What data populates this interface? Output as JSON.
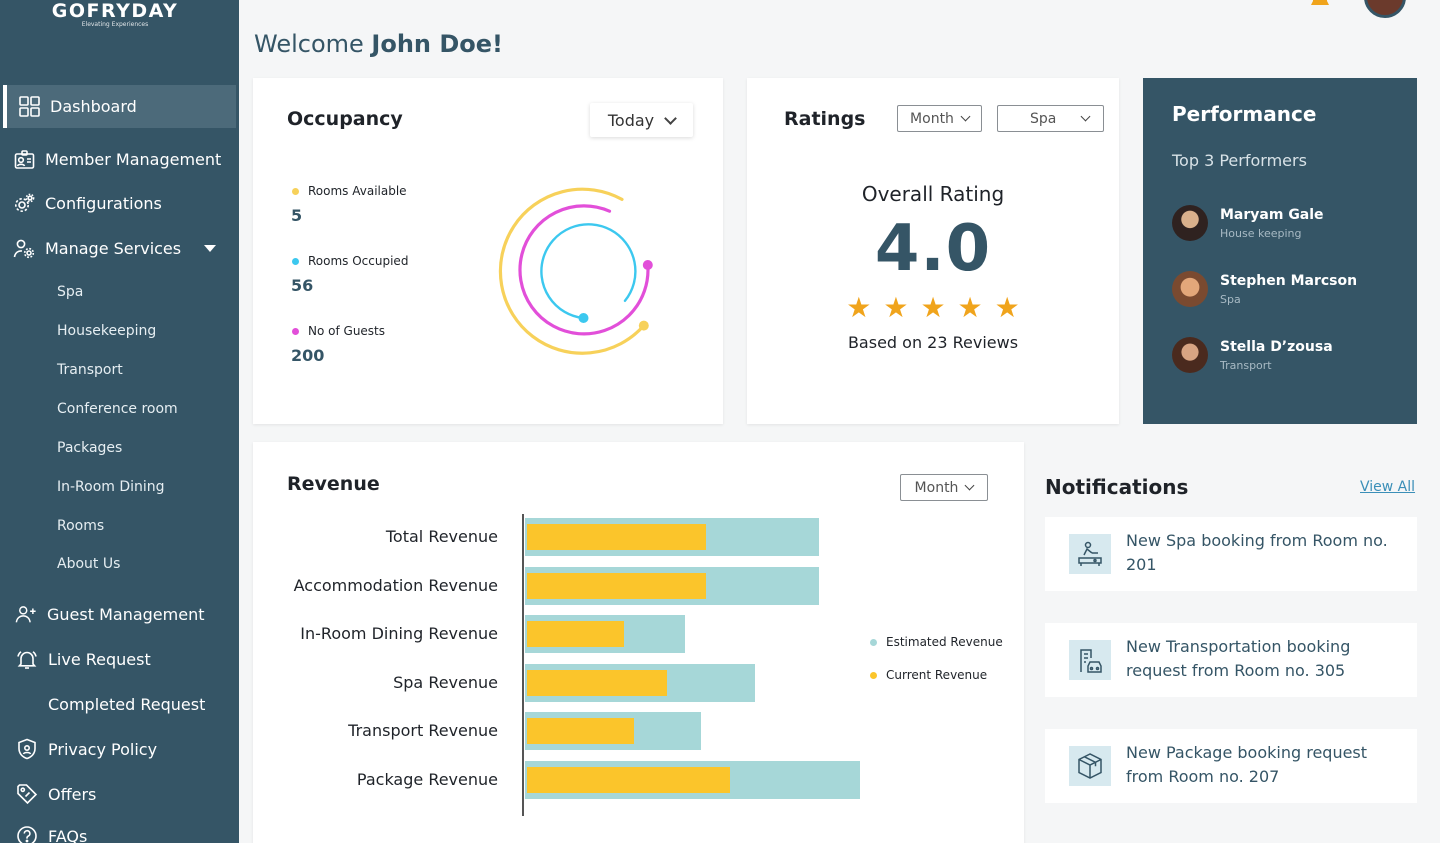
{
  "app": {
    "name": "GOFRYDAY",
    "tagline": "Elevating Experiences"
  },
  "welcome": {
    "prefix": "Welcome",
    "user": "John Doe!"
  },
  "sidebar": {
    "items": [
      {
        "label": "Dashboard",
        "icon": "grid-icon"
      },
      {
        "label": "Member Management",
        "icon": "id-card-icon"
      },
      {
        "label": "Configurations",
        "icon": "gears-icon"
      },
      {
        "label": "Manage Services",
        "icon": "user-settings-icon"
      },
      {
        "label": "Guest Management",
        "icon": "user-add-icon"
      },
      {
        "label": "Live Request",
        "icon": "bell-icon"
      },
      {
        "label": "Completed Request",
        "icon": ""
      },
      {
        "label": "Privacy Policy",
        "icon": "shield-icon"
      },
      {
        "label": "Offers",
        "icon": "tag-icon"
      },
      {
        "label": "FAQs",
        "icon": "question-icon"
      }
    ],
    "services": [
      "Spa",
      "Housekeeping",
      "Transport",
      "Conference room",
      "Packages",
      "In-Room Dining",
      "Rooms",
      "About Us"
    ]
  },
  "occupancy": {
    "title": "Occupancy",
    "filter": "Today",
    "stats": [
      {
        "label": "Rooms Available",
        "value": "5",
        "color": "#f7d15a"
      },
      {
        "label": "Rooms Occupied",
        "value": "56",
        "color": "#3cc8ef"
      },
      {
        "label": "No of Guests",
        "value": "200",
        "color": "#e24fd9"
      }
    ]
  },
  "ratings": {
    "title": "Ratings",
    "filter_period": "Month",
    "filter_service": "Spa",
    "heading": "Overall Rating",
    "value": "4.0",
    "stars": "★★★★★",
    "reviews": "Based on 23 Reviews"
  },
  "performance": {
    "title": "Performance",
    "subtitle": "Top 3 Performers",
    "people": [
      {
        "name": "Maryam Gale",
        "role": "House keeping"
      },
      {
        "name": "Stephen Marcson",
        "role": "Spa"
      },
      {
        "name": "Stella D’zousa",
        "role": "Transport"
      }
    ]
  },
  "revenue": {
    "title": "Revenue",
    "filter": "Month",
    "legend": {
      "estimated": "Estimated Revenue",
      "current": "Current Revenue"
    }
  },
  "chart_data": {
    "type": "bar",
    "orientation": "horizontal",
    "categories": [
      "Total Revenue",
      "Accommodation Revenue",
      "In-Room Dining Revenue",
      "Spa Revenue",
      "Transport Revenue",
      "Package Revenue"
    ],
    "series": [
      {
        "name": "Estimated Revenue",
        "color": "#a6d7d8",
        "values": [
          294,
          294,
          160,
          230,
          176,
          335
        ]
      },
      {
        "name": "Current Revenue",
        "color": "#fbc52b",
        "values": [
          179,
          179,
          97,
          140,
          107,
          203
        ]
      }
    ],
    "grid": false,
    "legend_position": "right"
  },
  "notifications": {
    "title": "Notifications",
    "view_all": "View All",
    "items": [
      {
        "text": "New Spa booking from Room no. 201",
        "icon": "spa-icon"
      },
      {
        "text": "New Transportation booking request from Room no. 305",
        "icon": "transport-icon"
      },
      {
        "text": "New Package booking request from Room no. 207",
        "icon": "package-icon"
      }
    ]
  }
}
